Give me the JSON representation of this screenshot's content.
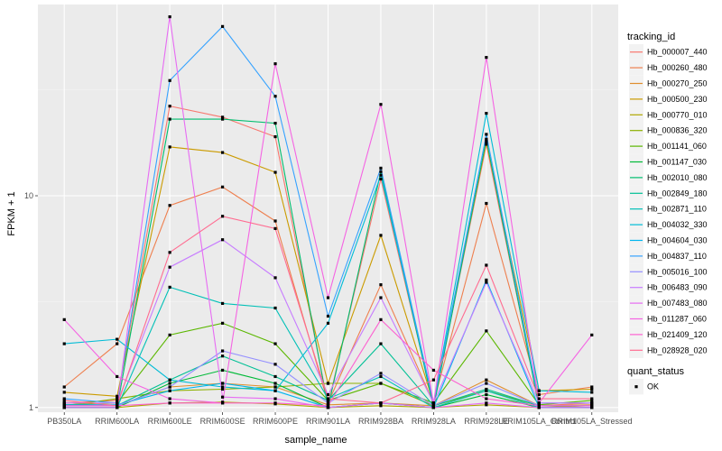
{
  "chart_data": {
    "type": "line",
    "xlabel": "sample_name",
    "ylabel": "FPKM + 1",
    "y_scale": "log",
    "ylim": [
      0.95,
      80
    ],
    "y_ticks": [
      1,
      10
    ],
    "grid": true,
    "legend_position": "right",
    "legend_title": "tracking_id",
    "shape_legend_title": "quant_status",
    "shape_legend_items": [
      "OK"
    ],
    "categories": [
      "PB350LA",
      "RRIM600LA",
      "RRIM600LE",
      "RRIM600SE",
      "RRIM600PE",
      "RRIM901LA",
      "RRIM928BA",
      "RRIM928LA",
      "RRIM928LE",
      "RRIM105LA_Control",
      "RRIM105LA_Stressed"
    ],
    "series": [
      {
        "name": "Hb_000007_440",
        "color": "#F8766D",
        "values": [
          1.05,
          1.08,
          26.5,
          23.5,
          19.0,
          1.03,
          12.0,
          1.03,
          17.5,
          1.02,
          1.05
        ]
      },
      {
        "name": "Hb_000260_480",
        "color": "#EE7F4E",
        "values": [
          1.25,
          2.0,
          9.0,
          11.0,
          7.6,
          1.05,
          3.8,
          1.05,
          9.2,
          1.15,
          1.25
        ]
      },
      {
        "name": "Hb_000270_250",
        "color": "#DF8E2E",
        "values": [
          1.02,
          1.02,
          1.25,
          1.3,
          1.25,
          1.03,
          1.05,
          1.02,
          1.35,
          1.02,
          1.03
        ]
      },
      {
        "name": "Hb_000500_230",
        "color": "#CB9B00",
        "values": [
          1.18,
          1.13,
          17.0,
          16.0,
          12.9,
          1.3,
          6.5,
          1.05,
          18.0,
          1.2,
          1.22
        ]
      },
      {
        "name": "Hb_000770_010",
        "color": "#B0A600",
        "values": [
          1.0,
          1.0,
          1.05,
          1.06,
          1.04,
          1.0,
          1.02,
          1.0,
          1.03,
          1.0,
          1.0
        ]
      },
      {
        "name": "Hb_000836_320",
        "color": "#8DB000",
        "values": [
          1.02,
          1.1,
          1.2,
          1.22,
          1.25,
          1.3,
          1.3,
          1.02,
          1.2,
          1.02,
          1.0
        ]
      },
      {
        "name": "Hb_001141_060",
        "color": "#5BB700",
        "values": [
          1.03,
          1.05,
          2.2,
          2.5,
          2.0,
          1.08,
          1.3,
          1.05,
          2.3,
          1.03,
          1.08
        ]
      },
      {
        "name": "Hb_001147_030",
        "color": "#00BA38",
        "values": [
          1.0,
          1.0,
          1.3,
          1.5,
          1.3,
          1.0,
          1.05,
          1.0,
          1.15,
          1.0,
          1.0
        ]
      },
      {
        "name": "Hb_002010_080",
        "color": "#00BD6E",
        "values": [
          1.0,
          1.0,
          23.0,
          23.0,
          22.0,
          1.0,
          13.0,
          1.0,
          18.5,
          1.0,
          1.0
        ]
      },
      {
        "name": "Hb_002849_180",
        "color": "#00C095",
        "values": [
          1.02,
          1.02,
          1.35,
          1.75,
          1.4,
          1.08,
          2.0,
          1.02,
          1.22,
          1.02,
          1.02
        ]
      },
      {
        "name": "Hb_002871_110",
        "color": "#00C0B7",
        "values": [
          1.0,
          1.0,
          3.7,
          3.1,
          2.95,
          1.1,
          1.4,
          1.0,
          1.2,
          1.0,
          1.0
        ]
      },
      {
        "name": "Hb_004032_330",
        "color": "#00BCD6",
        "values": [
          2.0,
          2.1,
          1.35,
          1.25,
          1.2,
          2.5,
          12.5,
          1.05,
          24.5,
          1.2,
          1.18
        ]
      },
      {
        "name": "Hb_004604_030",
        "color": "#00B5EE",
        "values": [
          1.03,
          1.03,
          1.2,
          1.3,
          1.2,
          1.0,
          1.05,
          1.0,
          4.0,
          1.0,
          1.0
        ]
      },
      {
        "name": "Hb_004837_110",
        "color": "#35A2FF",
        "values": [
          1.1,
          1.05,
          35.0,
          63.0,
          29.5,
          2.7,
          13.5,
          1.05,
          19.5,
          1.05,
          1.05
        ]
      },
      {
        "name": "Hb_005016_100",
        "color": "#9590FF",
        "values": [
          1.02,
          1.02,
          1.25,
          1.85,
          1.6,
          1.05,
          1.45,
          1.02,
          1.3,
          1.02,
          1.02
        ]
      },
      {
        "name": "Hb_006483_090",
        "color": "#C77CFF",
        "values": [
          1.05,
          1.05,
          4.6,
          6.2,
          4.1,
          1.15,
          3.3,
          1.05,
          3.9,
          1.05,
          1.05
        ]
      },
      {
        "name": "Hb_007483_080",
        "color": "#E76BF3",
        "values": [
          1.0,
          1.0,
          70.0,
          1.12,
          1.1,
          1.0,
          1.05,
          1.0,
          1.05,
          1.0,
          1.0
        ]
      },
      {
        "name": "Hb_011287_060",
        "color": "#F564E3",
        "values": [
          2.6,
          1.4,
          1.1,
          1.05,
          42.0,
          3.3,
          27.0,
          1.05,
          45.0,
          1.05,
          2.2
        ]
      },
      {
        "name": "Hb_021409_120",
        "color": "#FD61D1",
        "values": [
          1.02,
          1.02,
          1.05,
          1.05,
          1.05,
          1.02,
          2.6,
          1.5,
          1.1,
          1.02,
          1.02
        ]
      },
      {
        "name": "Hb_028928_020",
        "color": "#FF6C91",
        "values": [
          1.08,
          1.02,
          5.4,
          8.0,
          7.0,
          1.1,
          1.05,
          1.35,
          4.7,
          1.1,
          1.1
        ]
      }
    ]
  }
}
